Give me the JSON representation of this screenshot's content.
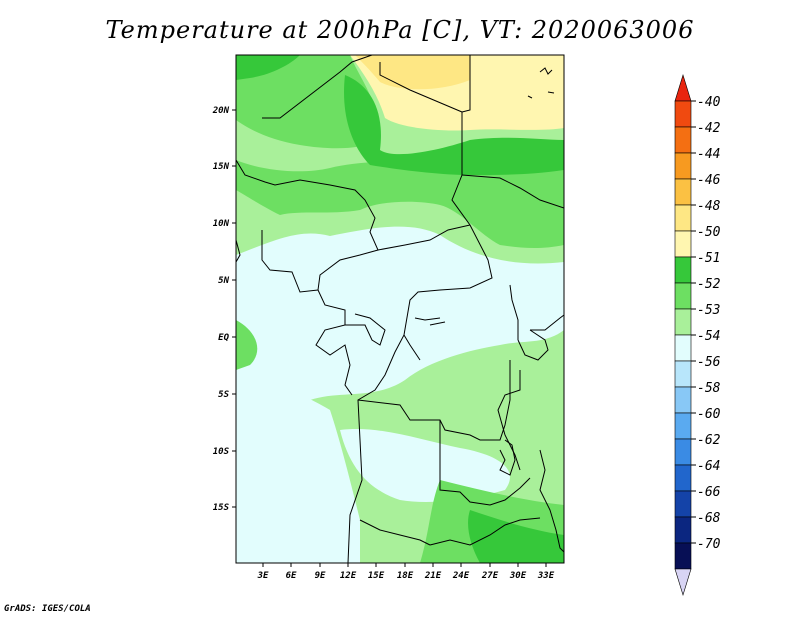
{
  "title": "Temperature at 200hPa [C], VT: 2020063006",
  "credit": "GrADS: IGES/COLA",
  "map": {
    "lat_labels": [
      "20N",
      "15N",
      "10N",
      "5N",
      "EQ",
      "5S",
      "10S",
      "15S"
    ],
    "lon_labels": [
      "3E",
      "6E",
      "9E",
      "12E",
      "15E",
      "18E",
      "21E",
      "24E",
      "27E",
      "30E",
      "33E"
    ]
  },
  "colorbar": {
    "labels": [
      "-40",
      "-42",
      "-44",
      "-46",
      "-48",
      "-50",
      "-51",
      "-52",
      "-53",
      "-54",
      "-56",
      "-58",
      "-60",
      "-62",
      "-64",
      "-66",
      "-68",
      "-70"
    ],
    "colors": [
      "#e8250f",
      "#f04a10",
      "#f46f12",
      "#f79a20",
      "#fbc143",
      "#fee784",
      "#fff6b0",
      "#36c83a",
      "#6ddf62",
      "#a9f09a",
      "#e2fdfd",
      "#b8e6fb",
      "#88c8f6",
      "#5aaaf0",
      "#3a8be4",
      "#2166cc",
      "#1443a8",
      "#0b2680",
      "#070f55",
      "#d8d4f4"
    ]
  },
  "legend_colors": {
    "w50": "#fff6b0",
    "w48": "#fee784",
    "g52": "#36c83a",
    "g53": "#6ddf62",
    "g54": "#a9f09a",
    "c56": "#e2fdfd"
  }
}
